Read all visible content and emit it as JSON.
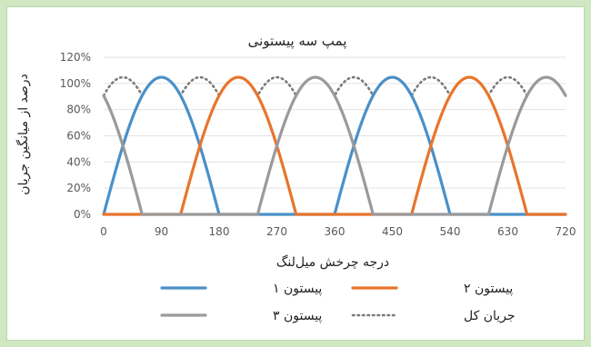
{
  "chart_data": {
    "type": "line",
    "title": "پمپ سه پیستونی",
    "xlabel": "درجه چرخش میل‌لنگ",
    "ylabel": "درصد از میانگین جریان",
    "xlim": [
      0,
      720
    ],
    "ylim": [
      0,
      1.2
    ],
    "x_ticks": [
      0,
      90,
      180,
      270,
      360,
      450,
      540,
      630,
      720
    ],
    "x_tick_labels": [
      "0",
      "90",
      "180",
      "270",
      "360",
      "450",
      "540",
      "630",
      "720"
    ],
    "y_ticks": [
      0,
      0.2,
      0.4,
      0.6,
      0.8,
      1.0,
      1.2
    ],
    "y_tick_labels": [
      "0%",
      "20%",
      "40%",
      "60%",
      "80%",
      "100%",
      "120%"
    ],
    "grid": "horizontal",
    "legend_position": "bottom",
    "peak_value": 1.047,
    "total_flow_min": 0.907,
    "series": [
      {
        "name": "پیستون ۱",
        "color": "#4a90c8",
        "style": "solid",
        "phase_deg": 0,
        "period_deg": 360,
        "active_span_deg": 180,
        "x": [
          0,
          15,
          30,
          45,
          60,
          75,
          90,
          105,
          120,
          135,
          150,
          165,
          180,
          360,
          375,
          390,
          405,
          420,
          435,
          450,
          465,
          480,
          495,
          510,
          525,
          540,
          720
        ],
        "y": [
          0,
          0.271,
          0.524,
          0.74,
          0.907,
          1.011,
          1.047,
          1.011,
          0.907,
          0.74,
          0.524,
          0.271,
          0,
          0,
          0.271,
          0.524,
          0.74,
          0.907,
          1.011,
          1.047,
          1.011,
          0.907,
          0.74,
          0.524,
          0.271,
          0,
          0
        ]
      },
      {
        "name": "پیستون ۲",
        "color": "#e8752c",
        "style": "solid",
        "phase_deg": 120,
        "period_deg": 360,
        "active_span_deg": 180,
        "x": [
          0,
          120,
          135,
          150,
          165,
          180,
          195,
          210,
          225,
          240,
          255,
          270,
          285,
          300,
          480,
          495,
          510,
          525,
          540,
          555,
          570,
          585,
          600,
          615,
          630,
          645,
          660,
          720
        ],
        "y": [
          0,
          0,
          0.271,
          0.524,
          0.74,
          0.907,
          1.011,
          1.047,
          1.011,
          0.907,
          0.74,
          0.524,
          0.271,
          0,
          0,
          0.271,
          0.524,
          0.74,
          0.907,
          1.011,
          1.047,
          1.011,
          0.907,
          0.74,
          0.524,
          0.271,
          0,
          0
        ]
      },
      {
        "name": "پیستون ۳",
        "color": "#9a9a9a",
        "style": "solid",
        "phase_deg": 240,
        "period_deg": 360,
        "active_span_deg": 180,
        "x": [
          0,
          15,
          30,
          45,
          60,
          240,
          255,
          270,
          285,
          300,
          315,
          330,
          345,
          360,
          375,
          390,
          405,
          420,
          600,
          615,
          630,
          645,
          660,
          675,
          690,
          705,
          720
        ],
        "y": [
          0.907,
          0.74,
          0.524,
          0.271,
          0,
          0,
          0.271,
          0.524,
          0.74,
          0.907,
          1.011,
          1.047,
          1.011,
          0.907,
          0.74,
          0.524,
          0.271,
          0,
          0,
          0.271,
          0.524,
          0.74,
          0.907,
          1.011,
          1.047,
          1.011,
          0.907
        ]
      },
      {
        "name": "جریان کل",
        "color": "#7a7a7a",
        "style": "dotted",
        "x": [
          0,
          15,
          30,
          45,
          60,
          75,
          90,
          105,
          120,
          135,
          150,
          165,
          180,
          195,
          210,
          225,
          240,
          255,
          270,
          285,
          300,
          315,
          330,
          345,
          360,
          375,
          390,
          405,
          420,
          435,
          450,
          465,
          480,
          495,
          510,
          525,
          540,
          555,
          570,
          585,
          600,
          615,
          630,
          645,
          660,
          675,
          690,
          705,
          720
        ],
        "y": [
          0.907,
          1.011,
          1.047,
          1.011,
          0.907,
          1.011,
          1.047,
          1.011,
          0.907,
          1.011,
          1.047,
          1.011,
          0.907,
          1.011,
          1.047,
          1.011,
          0.907,
          1.011,
          1.047,
          1.011,
          0.907,
          1.011,
          1.047,
          1.011,
          0.907,
          1.011,
          1.047,
          1.011,
          0.907,
          1.011,
          1.047,
          1.011,
          0.907,
          1.011,
          1.047,
          1.011,
          0.907,
          1.011,
          1.047,
          1.011,
          0.907,
          1.011,
          1.047,
          1.011,
          0.907,
          1.011,
          1.047,
          1.011,
          0.907
        ]
      }
    ]
  }
}
